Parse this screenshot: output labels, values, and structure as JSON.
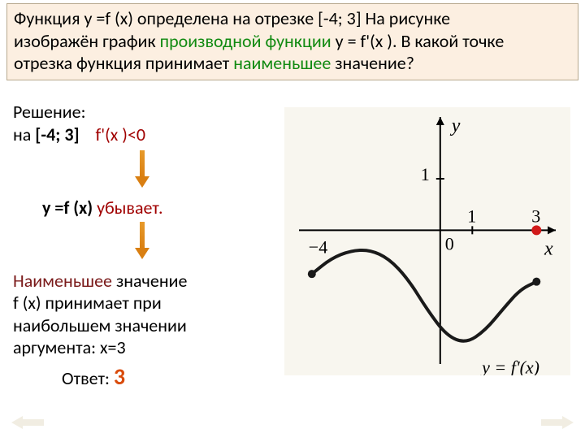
{
  "problem": {
    "line1_pre": "Функция y =f (x)  определена  на отрезке ",
    "interval": "[-4; 3]",
    "line1_post": "  На рисунке",
    "line2_pre": "изображён график ",
    "green1": "производной функции",
    "line2_post": " y = f'(x ). В какой точке",
    "line3_pre": "отрезка функция принимает ",
    "green2": "наименьшее",
    "line3_post": " значение?"
  },
  "solution": {
    "heading": "Решение:",
    "on_text": "на  ",
    "interval_bold": "[-4; 3] ",
    "cond": " f'(x )<0",
    "decreases_pre": "y =f (x) ",
    "decreases": "убывает.",
    "min_red": "Наименьшее",
    "min_post": " значение",
    "line_fx": " f (x) принимает при",
    "line_max1": "наибольшем ",
    "line_max2": "значении",
    "line_arg": "аргумента: x=3",
    "answer_label": "Ответ: ",
    "answer_value": "3"
  },
  "chart": {
    "type": "line",
    "background": "#f8f6ef",
    "axis_color": "#000000",
    "curve_color": "#1a1a1a",
    "curve_width": 4,
    "xlim": [
      -4.4,
      3.6
    ],
    "ylim": [
      -2.6,
      2.2
    ],
    "xtick_labels": [
      "-4",
      "0",
      "1",
      "3"
    ],
    "ytick_labels": [
      "1"
    ],
    "y_axis_label": "y",
    "x_axis_label": "x",
    "curve_label": "y = f'(x)",
    "endpoint_marker_color": "#1a1a1a",
    "endpoint_marker_radius": 5,
    "answer_marker_color": "#d11a1a",
    "curve_points": [
      [
        -4.0,
        -0.85
      ],
      [
        -3.4,
        -0.55
      ],
      [
        -2.8,
        -0.4
      ],
      [
        -2.2,
        -0.38
      ],
      [
        -1.6,
        -0.55
      ],
      [
        -1.0,
        -0.95
      ],
      [
        -0.4,
        -1.55
      ],
      [
        0.2,
        -2.05
      ],
      [
        0.8,
        -2.2
      ],
      [
        1.4,
        -1.95
      ],
      [
        2.0,
        -1.5
      ],
      [
        2.5,
        -1.15
      ],
      [
        3.0,
        -1.0
      ]
    ]
  },
  "colors": {
    "problem_bg": "#fcefe1",
    "green": "#118a11",
    "darkred": "#a00000",
    "maroon": "#7a1a1a",
    "answer_orange": "#d94b0b"
  }
}
